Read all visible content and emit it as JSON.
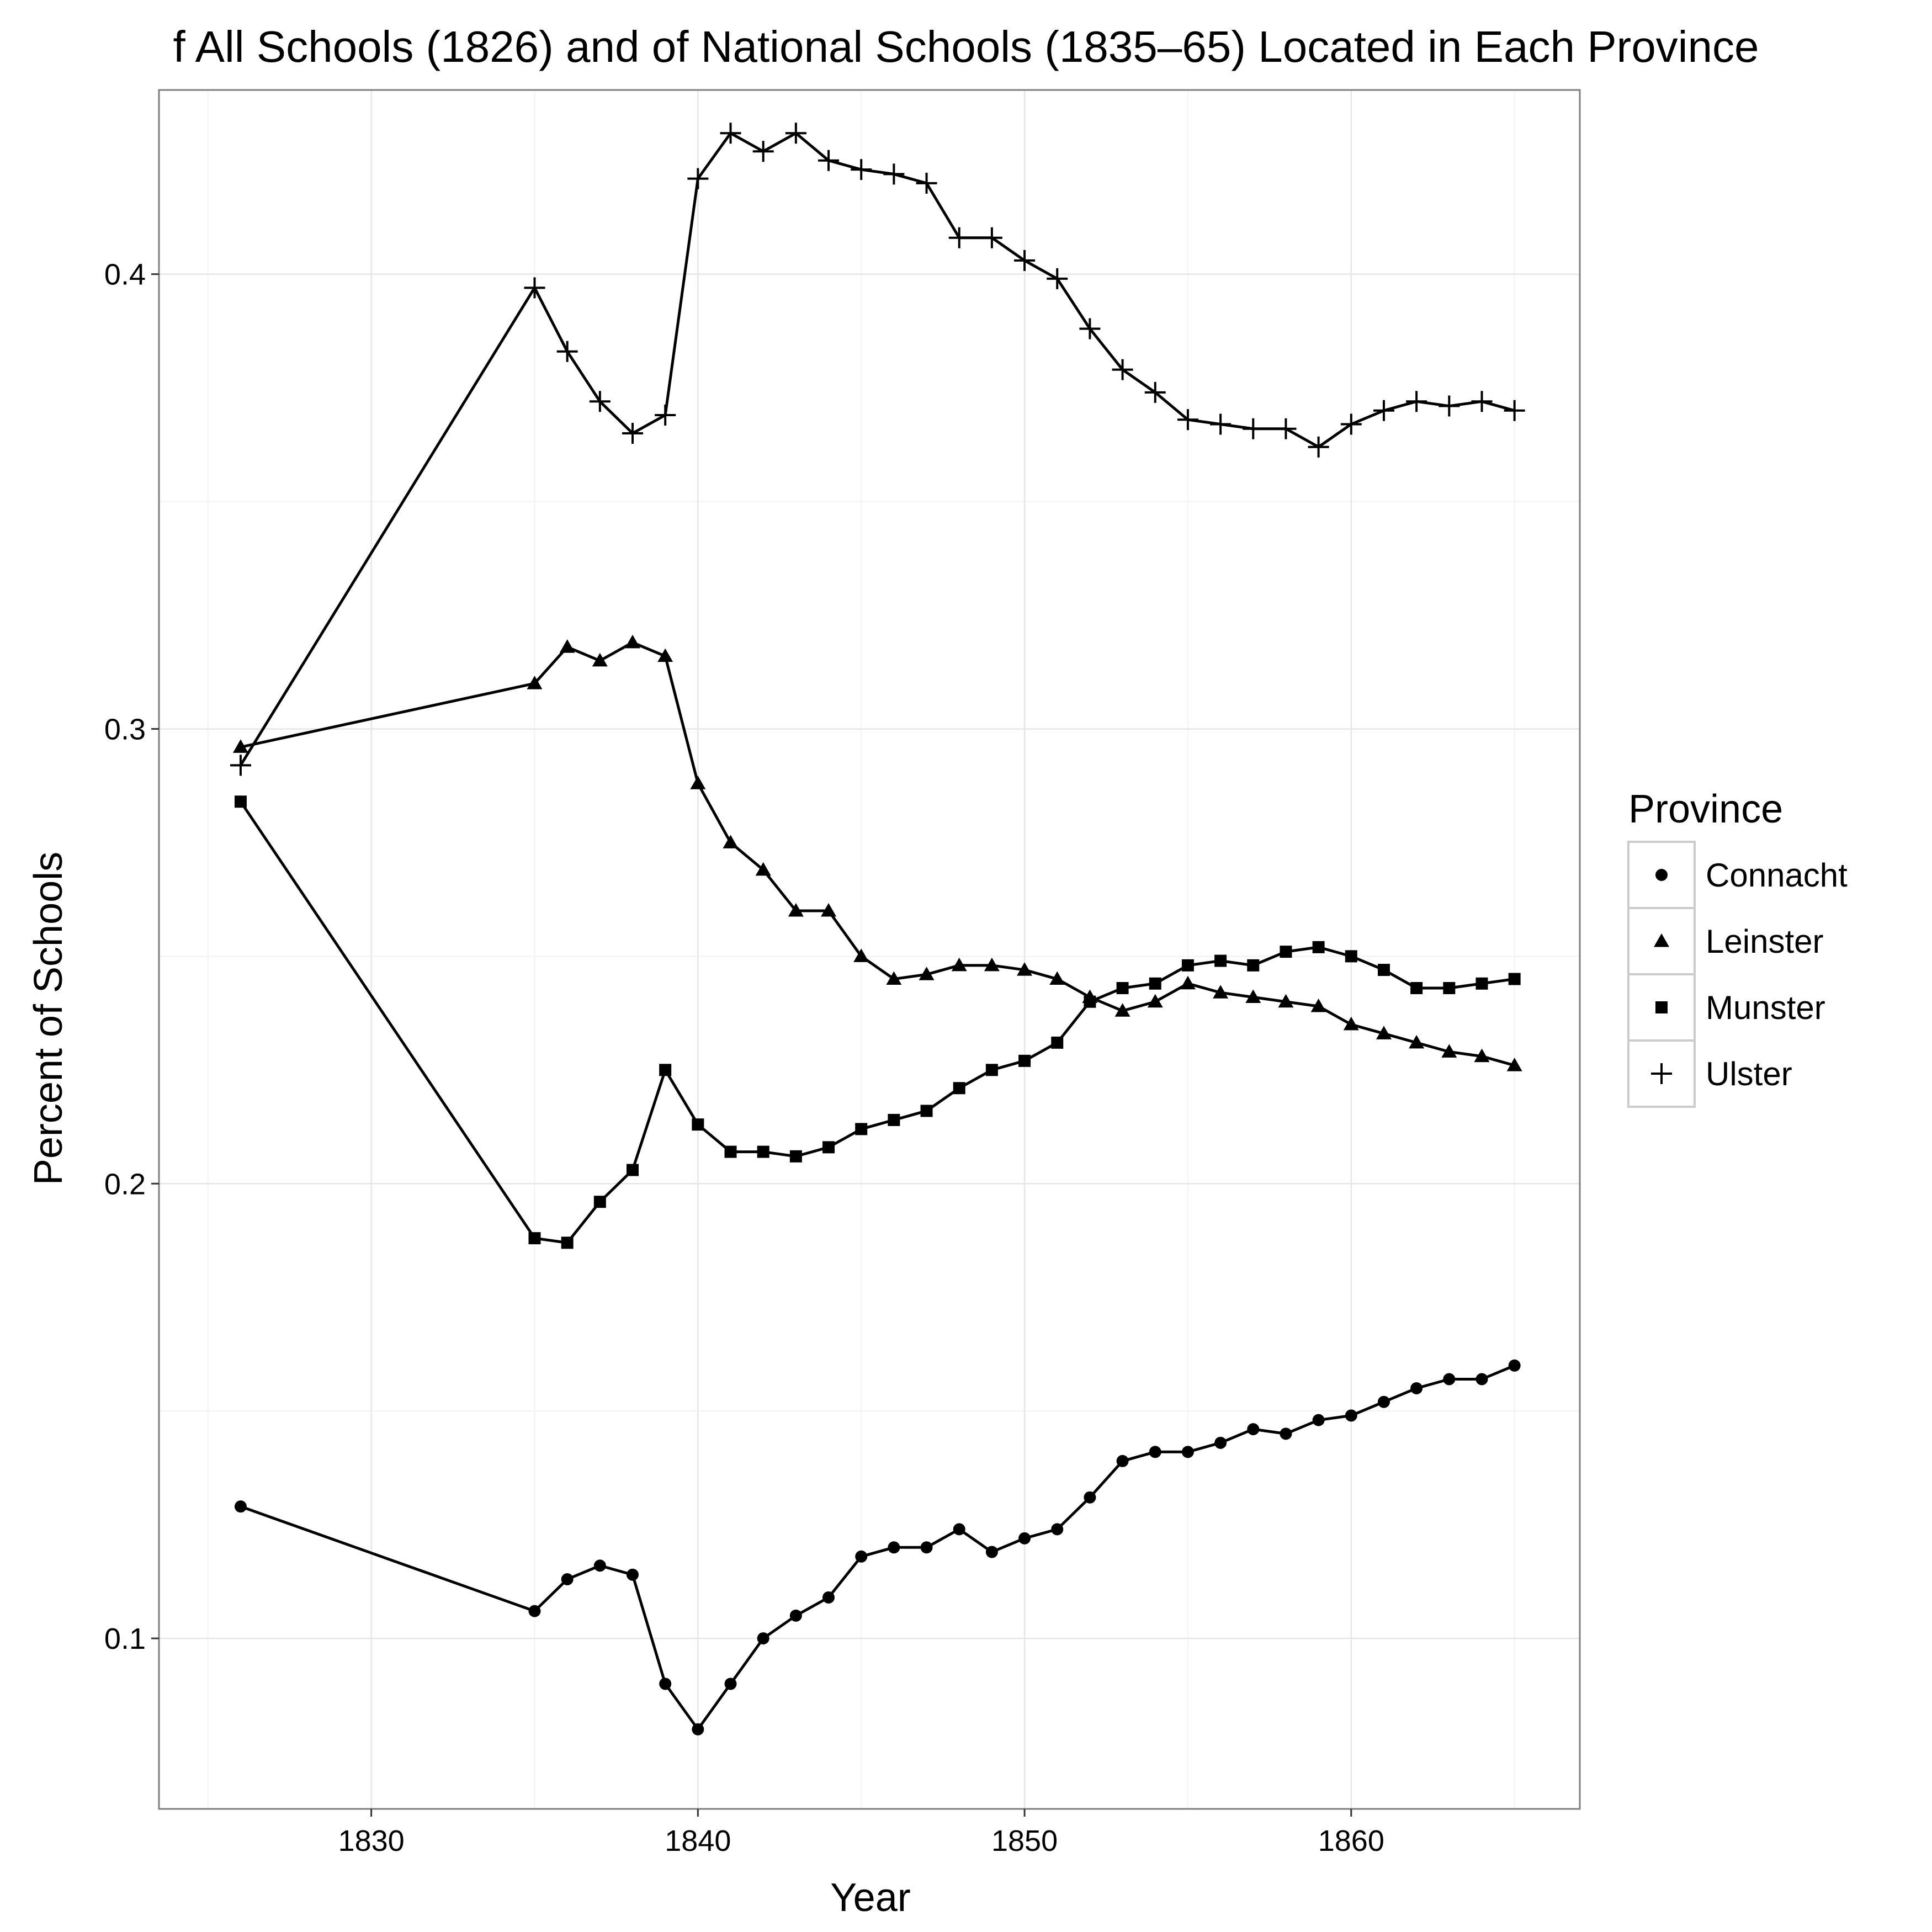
{
  "chart_data": {
    "type": "line",
    "title": "f All Schools (1826) and of National Schools (1835–65) Located in Each Province",
    "xlabel": "Year",
    "ylabel": "Percent of Schools",
    "xlim": [
      1823.5,
      1867
    ],
    "ylim": [
      0.0625,
      0.4405
    ],
    "x_ticks": [
      1830,
      1840,
      1850,
      1860
    ],
    "y_ticks": [
      0.1,
      0.2,
      0.3,
      0.4
    ],
    "x_tick_labels": [
      "1830",
      "1840",
      "1850",
      "1860"
    ],
    "y_tick_labels": [
      "0.1",
      "0.2",
      "0.3",
      "0.4"
    ],
    "grid": true,
    "legend": {
      "title": "Province",
      "position": "right"
    },
    "x": [
      1826,
      1835,
      1836,
      1837,
      1838,
      1839,
      1840,
      1841,
      1842,
      1843,
      1844,
      1845,
      1846,
      1847,
      1848,
      1849,
      1850,
      1851,
      1852,
      1853,
      1854,
      1855,
      1856,
      1857,
      1858,
      1859,
      1860,
      1861,
      1862,
      1863,
      1864,
      1865
    ],
    "series": [
      {
        "name": "Connacht",
        "marker": "circle",
        "values": [
          0.129,
          0.106,
          0.113,
          0.116,
          0.114,
          0.09,
          0.08,
          0.09,
          0.1,
          0.105,
          0.109,
          0.118,
          0.12,
          0.12,
          0.124,
          0.119,
          0.122,
          0.124,
          0.131,
          0.139,
          0.141,
          0.141,
          0.143,
          0.146,
          0.145,
          0.148,
          0.149,
          0.152,
          0.155,
          0.157,
          0.157,
          0.16
        ]
      },
      {
        "name": "Leinster",
        "marker": "triangle",
        "values": [
          0.296,
          0.31,
          0.318,
          0.315,
          0.319,
          0.316,
          0.288,
          0.275,
          0.269,
          0.26,
          0.26,
          0.25,
          0.245,
          0.246,
          0.248,
          0.248,
          0.247,
          0.245,
          0.241,
          0.238,
          0.24,
          0.244,
          0.242,
          0.241,
          0.24,
          0.239,
          0.235,
          0.233,
          0.231,
          0.229,
          0.228,
          0.226
        ]
      },
      {
        "name": "Munster",
        "marker": "square",
        "values": [
          0.284,
          0.188,
          0.187,
          0.196,
          0.203,
          0.225,
          0.213,
          0.207,
          0.207,
          0.206,
          0.208,
          0.212,
          0.214,
          0.216,
          0.221,
          0.225,
          0.227,
          0.231,
          0.24,
          0.243,
          0.244,
          0.248,
          0.249,
          0.248,
          0.251,
          0.252,
          0.25,
          0.247,
          0.243,
          0.243,
          0.244,
          0.245
        ]
      },
      {
        "name": "Ulster",
        "marker": "plus",
        "values": [
          0.292,
          0.397,
          0.383,
          0.372,
          0.365,
          0.369,
          0.421,
          0.431,
          0.427,
          0.431,
          0.425,
          0.423,
          0.422,
          0.42,
          0.408,
          0.408,
          0.403,
          0.399,
          0.388,
          0.379,
          0.374,
          0.368,
          0.367,
          0.366,
          0.366,
          0.362,
          0.367,
          0.37,
          0.372,
          0.371,
          0.372,
          0.37
        ]
      }
    ]
  }
}
